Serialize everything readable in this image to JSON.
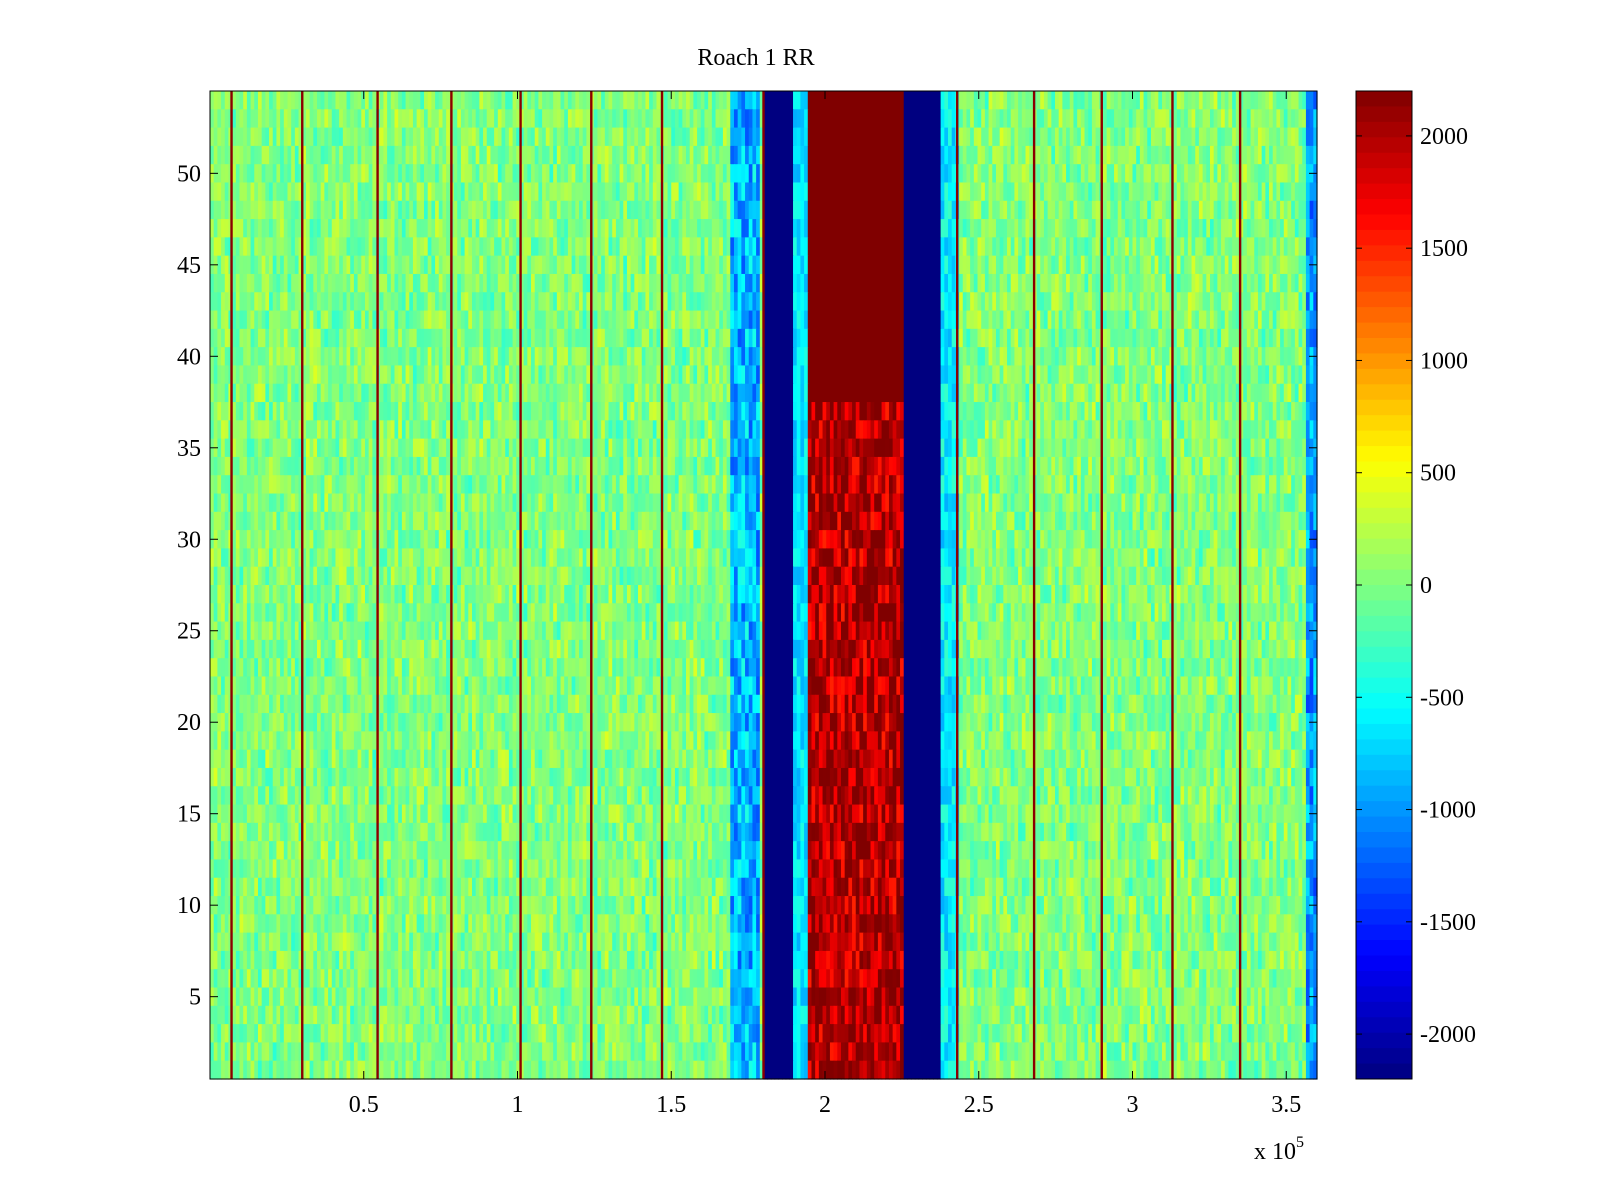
{
  "chart_data": {
    "type": "heatmap",
    "title": "Roach 1 RR",
    "xlabel": "",
    "ylabel": "",
    "x_multiplier_label": "x 10",
    "x_multiplier_exponent": "5",
    "xlim": [
      0,
      3.6
    ],
    "ylim": [
      0.5,
      54.5
    ],
    "x_ticks": [
      0.5,
      1,
      1.5,
      2,
      2.5,
      3,
      3.5
    ],
    "x_tick_labels": [
      "0.5",
      "1",
      "1.5",
      "2",
      "2.5",
      "3",
      "3.5"
    ],
    "y_ticks": [
      5,
      10,
      15,
      20,
      25,
      30,
      35,
      40,
      45,
      50
    ],
    "y_tick_labels": [
      "5",
      "10",
      "15",
      "20",
      "25",
      "30",
      "35",
      "40",
      "45",
      "50"
    ],
    "n_rows": 54,
    "colorbar": {
      "colormap": "jet",
      "clim": [
        -2200,
        2200
      ],
      "ticks": [
        2000,
        1500,
        1000,
        500,
        0,
        -500,
        -1000,
        -1500,
        -2000
      ],
      "tick_labels": [
        "2000",
        "1500",
        "1000",
        "500",
        "0",
        "-500",
        "-1000",
        "-1500",
        "-2000"
      ]
    },
    "background_noise": {
      "min": -500,
      "max": 550
    },
    "spike_lines_x": [
      0.07,
      0.3,
      0.545,
      0.785,
      1.01,
      1.24,
      1.47,
      1.8,
      2.43,
      2.68,
      2.9,
      3.13,
      3.35
    ],
    "bands": [
      {
        "x_start": 1.69,
        "x_end": 1.79,
        "value_min": -1300,
        "value_max": -400,
        "label": "blue shoulder left"
      },
      {
        "x_start": 1.8,
        "x_end": 1.9,
        "value": -2200,
        "label": "deep negative band left"
      },
      {
        "x_start": 1.9,
        "x_end": 1.95,
        "value_min": -900,
        "value_max": -400,
        "label": "cyan edge"
      },
      {
        "x_start": 1.95,
        "x_end": 2.26,
        "value_rows_1_to_37": [
          1200,
          2200
        ],
        "value_rows_38_to_54": 2200,
        "label": "strong positive band"
      },
      {
        "x_start": 2.26,
        "x_end": 2.38,
        "value": -2200,
        "label": "deep negative band right"
      },
      {
        "x_start": 2.38,
        "x_end": 2.43,
        "value_min": -900,
        "value_max": -300,
        "label": "cyan edge right"
      },
      {
        "x_start": 3.57,
        "x_end": 3.6,
        "value_min": -1400,
        "value_max": -600,
        "label": "right edge"
      }
    ]
  }
}
